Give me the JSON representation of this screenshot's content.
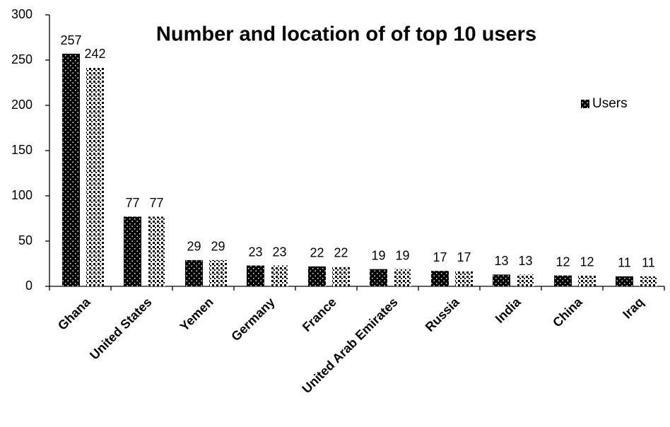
{
  "chart_data": {
    "type": "bar",
    "title": "Number and location of of top 10 users",
    "categories": [
      "Ghana",
      "United States",
      "Yemen",
      "Germany",
      "France",
      "United Arab Emirates",
      "Russia",
      "India",
      "China",
      "Iraq"
    ],
    "series": [
      {
        "name": "Users",
        "color": "#000000",
        "pattern": "dots",
        "values": [
          257,
          77,
          29,
          23,
          22,
          19,
          17,
          13,
          12,
          11
        ]
      },
      {
        "color": "#000000",
        "pattern": "checker",
        "values": [
          242,
          77,
          29,
          23,
          22,
          19,
          17,
          13,
          12,
          11
        ]
      }
    ],
    "ylim": [
      0,
      300
    ],
    "yticks": [
      0,
      50,
      100,
      150,
      200,
      250,
      300
    ],
    "grid": false,
    "legend": "right"
  }
}
